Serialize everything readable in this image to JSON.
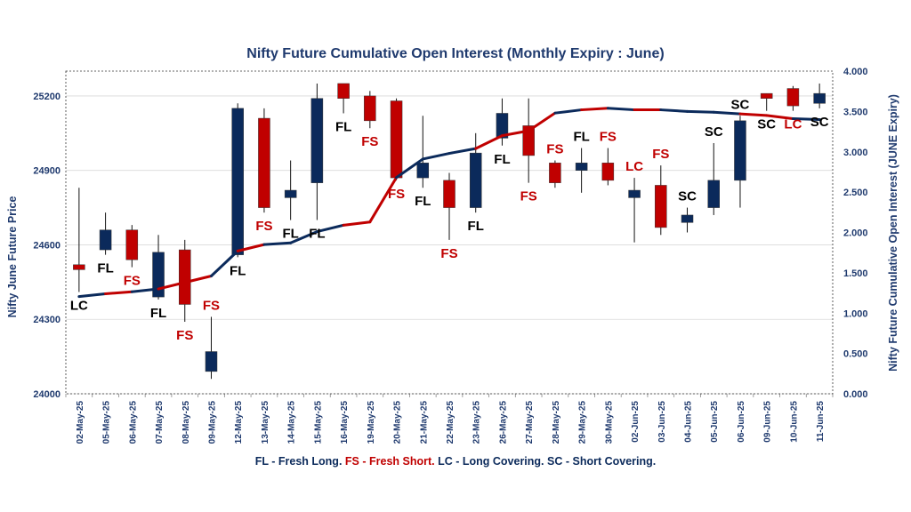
{
  "chart_data": {
    "type": "candlestick+line",
    "title": "Nifty Future Cumulative Open Interest (Monthly Expiry : June)",
    "left_axis": {
      "label": "Nifty June Future Price",
      "ylim": [
        24000,
        25300
      ],
      "ticks": [
        24000,
        24300,
        24600,
        24900,
        25200
      ]
    },
    "right_axis": {
      "label": "Nifty Future Cumulative Open Interest (JUNE Expiry)",
      "ylim": [
        0,
        4.0
      ],
      "ticks": [
        "0.000",
        "0.500",
        "1.000",
        "1.500",
        "2.000",
        "2.500",
        "3.000",
        "3.500",
        "4.000"
      ]
    },
    "categories": [
      "02-May-25",
      "05-May-25",
      "06-May-25",
      "07-May-25",
      "08-May-25",
      "09-May-25",
      "12-May-25",
      "13-May-25",
      "14-May-25",
      "15-May-25",
      "16-May-25",
      "19-May-25",
      "20-May-25",
      "21-May-25",
      "22-May-25",
      "23-May-25",
      "26-May-25",
      "27-May-25",
      "28-May-25",
      "29-May-25",
      "30-May-25",
      "02-Jun-25",
      "03-Jun-25",
      "04-Jun-25",
      "05-Jun-25",
      "06-Jun-25",
      "09-Jun-25",
      "10-Jun-25",
      "11-Jun-25"
    ],
    "candles": [
      {
        "o": 24520,
        "h": 24830,
        "l": 24410,
        "c": 24500,
        "dir": "down"
      },
      {
        "o": 24580,
        "h": 24730,
        "l": 24560,
        "c": 24660,
        "dir": "up"
      },
      {
        "o": 24660,
        "h": 24680,
        "l": 24510,
        "c": 24540,
        "dir": "down"
      },
      {
        "o": 24390,
        "h": 24640,
        "l": 24380,
        "c": 24570,
        "dir": "up"
      },
      {
        "o": 24580,
        "h": 24620,
        "l": 24290,
        "c": 24360,
        "dir": "down"
      },
      {
        "o": 24090,
        "h": 24310,
        "l": 24060,
        "c": 24170,
        "dir": "up"
      },
      {
        "o": 24560,
        "h": 25170,
        "l": 24550,
        "c": 25150,
        "dir": "up"
      },
      {
        "o": 25110,
        "h": 25150,
        "l": 24730,
        "c": 24750,
        "dir": "down"
      },
      {
        "o": 24790,
        "h": 24940,
        "l": 24700,
        "c": 24820,
        "dir": "up"
      },
      {
        "o": 24850,
        "h": 25250,
        "l": 24700,
        "c": 25190,
        "dir": "up"
      },
      {
        "o": 25250,
        "h": 25250,
        "l": 25130,
        "c": 25190,
        "dir": "down"
      },
      {
        "o": 25200,
        "h": 25220,
        "l": 25070,
        "c": 25100,
        "dir": "down"
      },
      {
        "o": 25180,
        "h": 25190,
        "l": 24860,
        "c": 24870,
        "dir": "down"
      },
      {
        "o": 24870,
        "h": 25120,
        "l": 24830,
        "c": 24930,
        "dir": "up"
      },
      {
        "o": 24860,
        "h": 24890,
        "l": 24620,
        "c": 24750,
        "dir": "down"
      },
      {
        "o": 24750,
        "h": 25050,
        "l": 24730,
        "c": 24970,
        "dir": "up"
      },
      {
        "o": 25030,
        "h": 25190,
        "l": 25000,
        "c": 25130,
        "dir": "up"
      },
      {
        "o": 25080,
        "h": 25190,
        "l": 24850,
        "c": 24960,
        "dir": "down"
      },
      {
        "o": 24930,
        "h": 24940,
        "l": 24830,
        "c": 24850,
        "dir": "down"
      },
      {
        "o": 24900,
        "h": 24990,
        "l": 24810,
        "c": 24930,
        "dir": "up"
      },
      {
        "o": 24930,
        "h": 24990,
        "l": 24840,
        "c": 24860,
        "dir": "down"
      },
      {
        "o": 24790,
        "h": 24870,
        "l": 24610,
        "c": 24820,
        "dir": "up"
      },
      {
        "o": 24840,
        "h": 24920,
        "l": 24640,
        "c": 24670,
        "dir": "down"
      },
      {
        "o": 24690,
        "h": 24750,
        "l": 24650,
        "c": 24720,
        "dir": "up"
      },
      {
        "o": 24750,
        "h": 25010,
        "l": 24720,
        "c": 24860,
        "dir": "up"
      },
      {
        "o": 24860,
        "h": 25120,
        "l": 24750,
        "c": 25100,
        "dir": "up"
      },
      {
        "o": 25190,
        "h": 25210,
        "l": 25140,
        "c": 25210,
        "dir": "down"
      },
      {
        "o": 25230,
        "h": 25240,
        "l": 25140,
        "c": 25160,
        "dir": "down"
      },
      {
        "o": 25170,
        "h": 25250,
        "l": 25150,
        "c": 25210,
        "dir": "up"
      }
    ],
    "open_interest": [
      1.205,
      1.24,
      1.265,
      1.3,
      1.38,
      1.46,
      1.77,
      1.85,
      1.87,
      2.01,
      2.09,
      2.13,
      2.68,
      2.91,
      2.98,
      3.04,
      3.2,
      3.26,
      3.48,
      3.52,
      3.54,
      3.52,
      3.52,
      3.5,
      3.49,
      3.47,
      3.45,
      3.41,
      3.4
    ],
    "oi_segment_colors": [
      "blue",
      "red",
      "blue",
      "red",
      "red",
      "blue",
      "red",
      "blue",
      "blue",
      "blue",
      "red",
      "red",
      "blue",
      "blue",
      "blue",
      "red",
      "red",
      "red",
      "blue",
      "red",
      "blue",
      "red",
      "blue",
      "blue",
      "blue",
      "red",
      "red",
      "blue"
    ],
    "annotations": [
      {
        "text": "LC",
        "pos": "below",
        "color": "black"
      },
      {
        "text": "FL",
        "pos": "below",
        "color": "black"
      },
      {
        "text": "FS",
        "pos": "below",
        "color": "red"
      },
      {
        "text": "FL",
        "pos": "below",
        "color": "black"
      },
      {
        "text": "FS",
        "pos": "below",
        "color": "red"
      },
      {
        "text": "FS",
        "pos": "above",
        "color": "red"
      },
      {
        "text": "FL",
        "pos": "below",
        "color": "black"
      },
      {
        "text": "FS",
        "pos": "below",
        "color": "red"
      },
      {
        "text": "FL",
        "pos": "below",
        "color": "black"
      },
      {
        "text": "FL",
        "pos": "below",
        "color": "black"
      },
      {
        "text": "FL",
        "pos": "below",
        "color": "black"
      },
      {
        "text": "FS",
        "pos": "below",
        "color": "red"
      },
      {
        "text": "FS",
        "pos": "below",
        "color": "red"
      },
      {
        "text": "FL",
        "pos": "below",
        "color": "black"
      },
      {
        "text": "FS",
        "pos": "below",
        "color": "red"
      },
      {
        "text": "FL",
        "pos": "below",
        "color": "black"
      },
      {
        "text": "FL",
        "pos": "below",
        "color": "black"
      },
      {
        "text": "FS",
        "pos": "below",
        "color": "red"
      },
      {
        "text": "FS",
        "pos": "above",
        "color": "red"
      },
      {
        "text": "FL",
        "pos": "above",
        "color": "black"
      },
      {
        "text": "FS",
        "pos": "above",
        "color": "red"
      },
      {
        "text": "LC",
        "pos": "above",
        "color": "red"
      },
      {
        "text": "FS",
        "pos": "above",
        "color": "red"
      },
      {
        "text": "SC",
        "pos": "above",
        "color": "black"
      },
      {
        "text": "SC",
        "pos": "above",
        "color": "black"
      },
      {
        "text": "SC",
        "pos": "above",
        "color": "black"
      },
      {
        "text": "SC",
        "pos": "below",
        "color": "black"
      },
      {
        "text": "LC",
        "pos": "below",
        "color": "red"
      },
      {
        "text": "SC",
        "pos": "below",
        "color": "black"
      }
    ],
    "legend": [
      {
        "text": "FL - Fresh Long.",
        "color": "blue"
      },
      {
        "text": "FS - Fresh Short.",
        "color": "red"
      },
      {
        "text": "LC - Long Covering.",
        "color": "blue"
      },
      {
        "text": "SC - Short Covering.",
        "color": "blue"
      }
    ],
    "colors": {
      "up": "#0b2a5b",
      "down": "#c00000",
      "text_black": "#000000",
      "text_red": "#c00000",
      "axis": "#1f3a6e"
    }
  }
}
